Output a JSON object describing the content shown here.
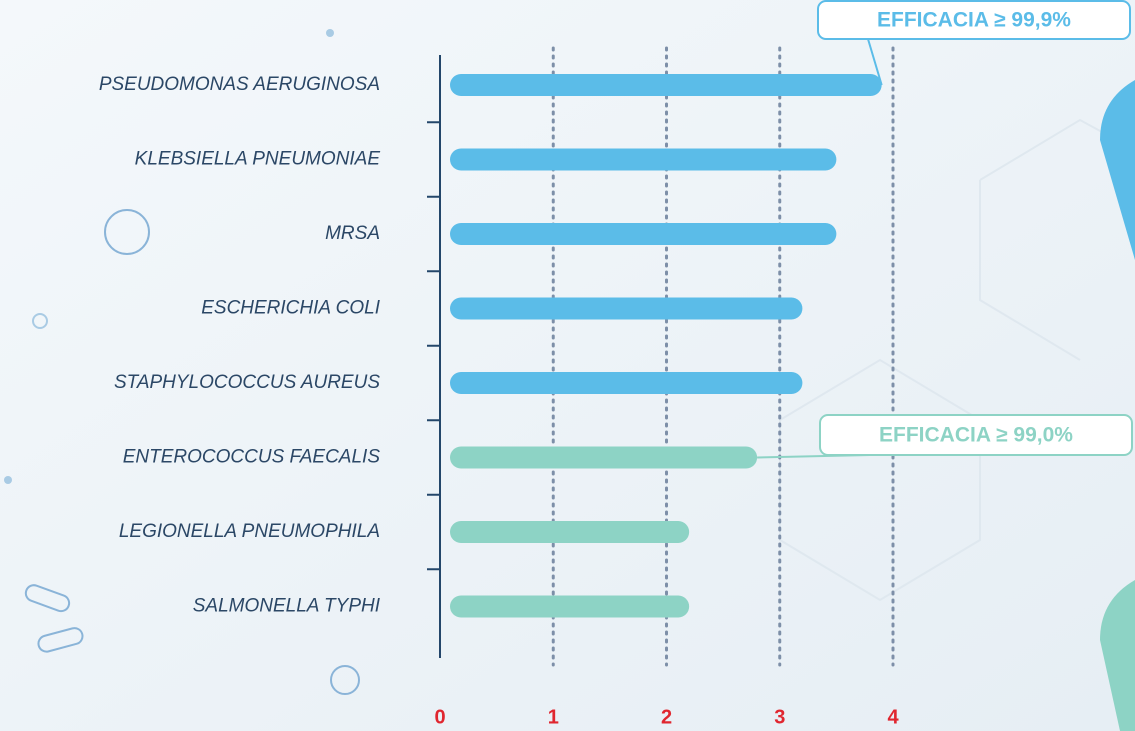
{
  "chart_data": {
    "type": "bar",
    "orientation": "horizontal",
    "categories": [
      "PSEUDOMONAS AERUGINOSA",
      "KLEBSIELLA PNEUMONIAE",
      "MRSA",
      "ESCHERICHIA COLI",
      "STAPHYLOCOCCUS AUREUS",
      "ENTEROCOCCUS FAECALIS",
      "LEGIONELLA PNEUMOPHILA",
      "SALMONELLA TYPHI"
    ],
    "values": [
      3.9,
      3.5,
      3.5,
      3.2,
      3.2,
      2.8,
      2.2,
      2.2
    ],
    "colors": [
      "#5bbce8",
      "#5bbce8",
      "#5bbce8",
      "#5bbce8",
      "#5bbce8",
      "#8dd3c5",
      "#8dd3c5",
      "#8dd3c5"
    ],
    "xlim": [
      0,
      4
    ],
    "xticks": [
      0,
      1,
      2,
      3,
      4
    ],
    "grid": true,
    "annotations": [
      {
        "text": "EFFICACIA ≥ 99,9%",
        "color": "#5bbce8",
        "category": 0
      },
      {
        "text": "EFFICACIA ≥ 99,0%",
        "color": "#8dd3c5",
        "category": 5
      }
    ]
  }
}
